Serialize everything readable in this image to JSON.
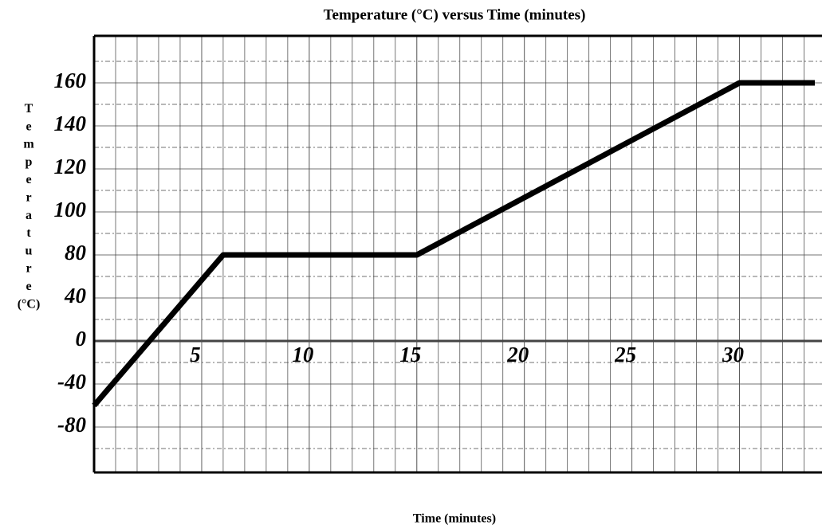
{
  "chart_data": {
    "type": "line",
    "title": "Temperature (°C) versus Time (minutes)",
    "xlabel": "Time (minutes)",
    "ylabel": "Temperature (°C)",
    "xlim": [
      0,
      33.5
    ],
    "xticks": [
      5,
      10,
      15,
      20,
      25,
      30
    ],
    "ylim": [
      -120,
      180
    ],
    "yticks": [
      -80,
      -40,
      0,
      40,
      80,
      100,
      120,
      140,
      160
    ],
    "grid": true,
    "series": [
      {
        "name": "Temperature",
        "color": "#000000",
        "x": [
          0,
          6,
          15,
          30,
          33.5
        ],
        "values": [
          -60,
          80,
          80,
          160,
          160
        ]
      }
    ]
  }
}
